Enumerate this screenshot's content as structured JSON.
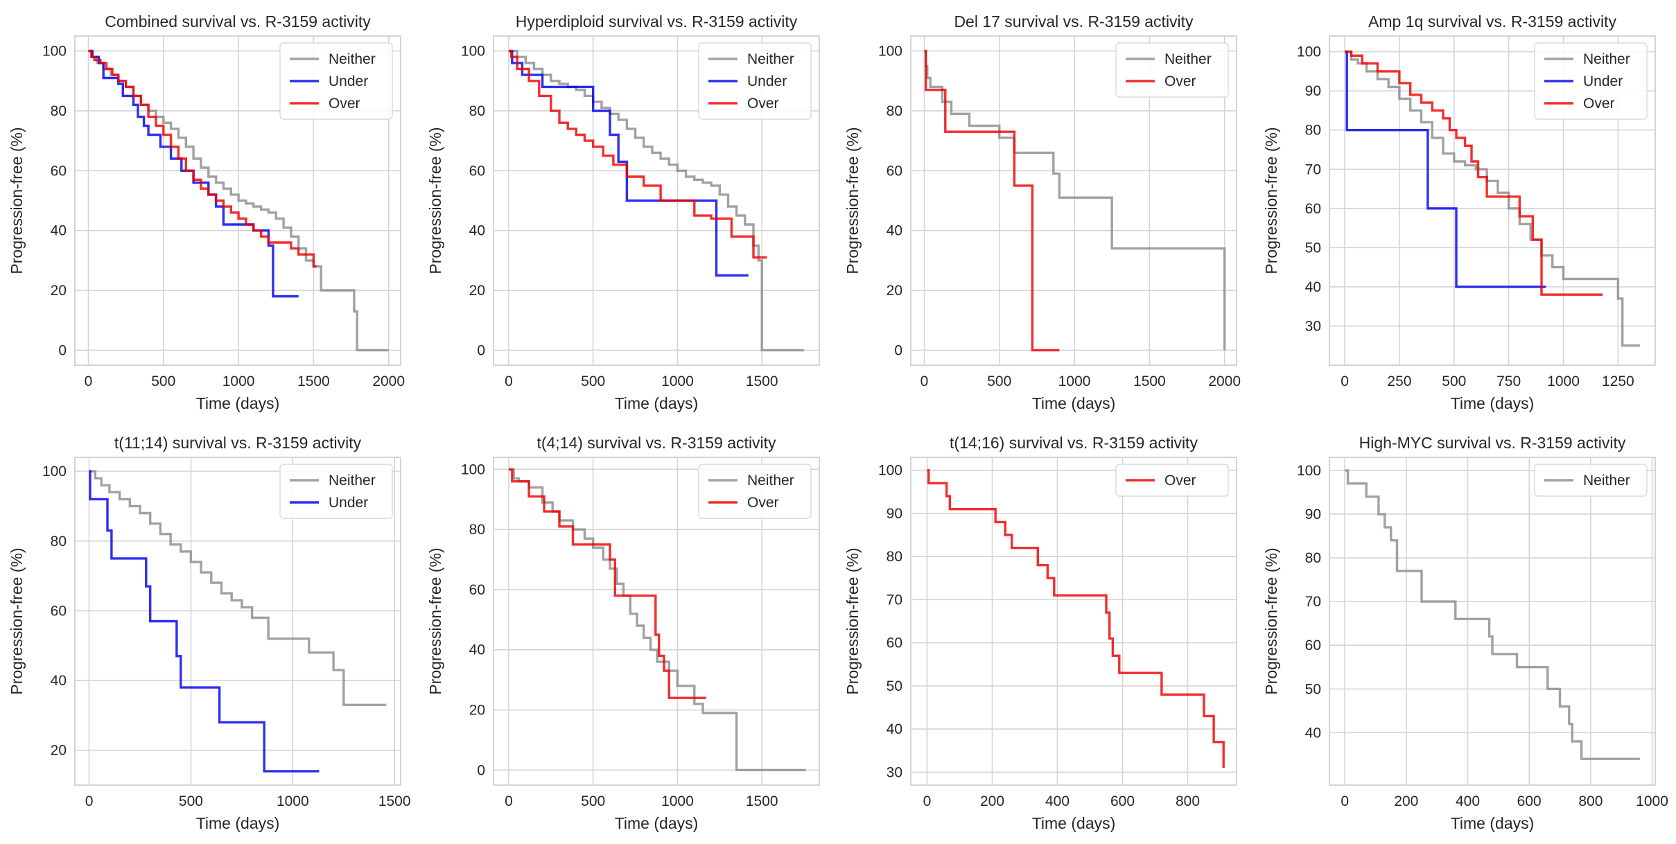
{
  "colors": {
    "Neither": "#8c8c8c",
    "Under": "#0000ee",
    "Over": "#ee0000",
    "grid": "#d4d4d4",
    "frame": "#cfcfcf"
  },
  "chart_data": [
    {
      "type": "line",
      "step": true,
      "title": "Combined survival vs. R-3159 activity",
      "xlabel": "Time (days)",
      "ylabel": "Progression-free (%)",
      "xlim": [
        -90,
        2080
      ],
      "ylim": [
        -5,
        105
      ],
      "xticks": [
        0,
        500,
        1000,
        1500,
        2000
      ],
      "yticks": [
        0,
        20,
        40,
        60,
        80,
        100
      ],
      "legend": "top-right",
      "series": [
        {
          "name": "Neither",
          "x": [
            0,
            30,
            60,
            100,
            150,
            200,
            250,
            300,
            350,
            400,
            450,
            500,
            550,
            600,
            650,
            700,
            750,
            800,
            850,
            900,
            950,
            1000,
            1050,
            1100,
            1150,
            1200,
            1250,
            1300,
            1350,
            1400,
            1450,
            1500,
            1550,
            1600,
            1650,
            1700,
            1750,
            1770,
            1790,
            2000
          ],
          "y": [
            100,
            98,
            96,
            94,
            92,
            90,
            88,
            85,
            82,
            80,
            78,
            76,
            74,
            71,
            68,
            64,
            61,
            58,
            56,
            54,
            52,
            50,
            49,
            48,
            47,
            46,
            44,
            41,
            38,
            34,
            30,
            28,
            20,
            20,
            20,
            20,
            20,
            13,
            0,
            0
          ]
        },
        {
          "name": "Under",
          "x": [
            0,
            25,
            70,
            100,
            200,
            230,
            300,
            330,
            370,
            400,
            480,
            550,
            620,
            700,
            800,
            850,
            900,
            1000,
            1050,
            1100,
            1150,
            1200,
            1230,
            1400
          ],
          "y": [
            100,
            98,
            96,
            91,
            89,
            85,
            82,
            78,
            75,
            72,
            68,
            64,
            60,
            56,
            52,
            48,
            42,
            42,
            42,
            40,
            40,
            35,
            18,
            18
          ]
        },
        {
          "name": "Over",
          "x": [
            0,
            20,
            40,
            80,
            120,
            160,
            200,
            250,
            300,
            350,
            400,
            450,
            500,
            550,
            600,
            650,
            700,
            750,
            800,
            850,
            900,
            950,
            1000,
            1050,
            1100,
            1150,
            1200,
            1250,
            1300,
            1350,
            1400,
            1450,
            1500,
            1520
          ],
          "y": [
            100,
            98,
            97,
            96,
            94,
            92,
            90,
            88,
            85,
            82,
            78,
            75,
            72,
            68,
            64,
            60,
            57,
            54,
            52,
            50,
            48,
            46,
            44,
            42,
            40,
            38,
            36,
            36,
            36,
            34,
            32,
            32,
            28,
            28
          ]
        }
      ]
    },
    {
      "type": "line",
      "step": true,
      "title": "Hyperdiploid survival vs. R-3159 activity",
      "xlabel": "Time (days)",
      "ylabel": "Progression-free (%)",
      "xlim": [
        -90,
        1840
      ],
      "ylim": [
        -5,
        105
      ],
      "xticks": [
        0,
        500,
        1000,
        1500
      ],
      "yticks": [
        0,
        20,
        40,
        60,
        80,
        100
      ],
      "legend": "top-right",
      "series": [
        {
          "name": "Neither",
          "x": [
            0,
            50,
            100,
            150,
            200,
            250,
            300,
            350,
            400,
            450,
            500,
            550,
            600,
            650,
            700,
            750,
            800,
            850,
            900,
            950,
            1000,
            1050,
            1100,
            1150,
            1200,
            1250,
            1300,
            1350,
            1400,
            1450,
            1480,
            1500,
            1750
          ],
          "y": [
            100,
            98,
            96,
            94,
            92,
            90,
            89,
            88,
            87,
            85,
            83,
            81,
            79,
            77,
            74,
            71,
            68,
            66,
            64,
            62,
            60,
            58,
            57,
            56,
            55,
            52,
            48,
            45,
            42,
            35,
            30,
            0,
            0
          ]
        },
        {
          "name": "Under",
          "x": [
            0,
            20,
            80,
            200,
            300,
            350,
            500,
            600,
            650,
            700,
            900,
            1000,
            1200,
            1230,
            1420
          ],
          "y": [
            100,
            96,
            92,
            88,
            88,
            88,
            80,
            72,
            63,
            50,
            50,
            50,
            50,
            25,
            25
          ]
        },
        {
          "name": "Over",
          "x": [
            0,
            15,
            50,
            120,
            180,
            250,
            300,
            350,
            400,
            450,
            500,
            560,
            620,
            700,
            800,
            900,
            1000,
            1100,
            1200,
            1320,
            1400,
            1450,
            1530
          ],
          "y": [
            100,
            98,
            94,
            90,
            85,
            80,
            76,
            74,
            72,
            70,
            68,
            65,
            62,
            58,
            55,
            50,
            50,
            45,
            44,
            38,
            38,
            31,
            31
          ]
        }
      ]
    },
    {
      "type": "line",
      "step": true,
      "title": "Del 17 survival vs. R-3159 activity",
      "xlabel": "Time (days)",
      "ylabel": "Progression-free (%)",
      "xlim": [
        -90,
        2080
      ],
      "ylim": [
        -5,
        105
      ],
      "xticks": [
        0,
        500,
        1000,
        1500,
        2000
      ],
      "yticks": [
        0,
        20,
        40,
        60,
        80,
        100
      ],
      "legend": "top-right",
      "series": [
        {
          "name": "Neither",
          "x": [
            0,
            10,
            20,
            40,
            120,
            180,
            300,
            500,
            600,
            860,
            900,
            1250,
            2000
          ],
          "y": [
            100,
            95,
            91,
            88,
            83,
            79,
            75,
            71,
            66,
            59,
            51,
            34,
            0
          ]
        },
        {
          "name": "Over",
          "x": [
            0,
            10,
            140,
            600,
            720,
            900
          ],
          "y": [
            100,
            87,
            73,
            55,
            0,
            0
          ]
        }
      ]
    },
    {
      "type": "line",
      "step": true,
      "title": "Amp 1q survival vs. R-3159 activity",
      "xlabel": "Time (days)",
      "ylabel": "Progression-free (%)",
      "xlim": [
        -70,
        1420
      ],
      "ylim": [
        20,
        104
      ],
      "xticks": [
        0,
        250,
        500,
        750,
        1000,
        1250
      ],
      "yticks": [
        30,
        40,
        50,
        60,
        70,
        80,
        90,
        100
      ],
      "legend": "top-right",
      "series": [
        {
          "name": "Neither",
          "x": [
            0,
            30,
            60,
            100,
            150,
            200,
            250,
            300,
            350,
            400,
            450,
            500,
            550,
            600,
            650,
            700,
            750,
            800,
            850,
            900,
            950,
            1000,
            1100,
            1200,
            1250,
            1270,
            1350
          ],
          "y": [
            100,
            98,
            97,
            95,
            93,
            91,
            88,
            85,
            82,
            78,
            74,
            72,
            71,
            70,
            67,
            64,
            60,
            56,
            52,
            48,
            45,
            42,
            42,
            42,
            37,
            25,
            25
          ]
        },
        {
          "name": "Under",
          "x": [
            0,
            10,
            380,
            510,
            900,
            920
          ],
          "y": [
            100,
            80,
            60,
            40,
            40,
            40
          ]
        },
        {
          "name": "Over",
          "x": [
            0,
            30,
            80,
            150,
            250,
            300,
            350,
            400,
            450,
            480,
            510,
            550,
            580,
            610,
            650,
            700,
            800,
            860,
            900,
            1180
          ],
          "y": [
            100,
            99,
            97,
            95,
            92,
            89,
            87,
            85,
            83,
            80,
            78,
            76,
            72,
            68,
            63,
            63,
            58,
            52,
            38,
            38
          ]
        }
      ]
    },
    {
      "type": "line",
      "step": true,
      "title": "t(11;14) survival vs. R-3159 activity",
      "xlabel": "Time (days)",
      "ylabel": "Progression-free (%)",
      "xlim": [
        -70,
        1530
      ],
      "ylim": [
        10,
        104
      ],
      "xticks": [
        0,
        500,
        1000,
        1500
      ],
      "yticks": [
        20,
        40,
        60,
        80,
        100
      ],
      "legend": "top-right",
      "series": [
        {
          "name": "Neither",
          "x": [
            0,
            30,
            60,
            100,
            150,
            200,
            250,
            300,
            350,
            400,
            450,
            500,
            550,
            600,
            650,
            700,
            750,
            800,
            880,
            1000,
            1080,
            1150,
            1200,
            1250,
            1460
          ],
          "y": [
            100,
            98,
            96,
            94,
            92,
            90,
            88,
            85,
            82,
            79,
            77,
            74,
            71,
            68,
            65,
            63,
            61,
            58,
            52,
            52,
            48,
            48,
            43,
            33,
            33
          ]
        },
        {
          "name": "Under",
          "x": [
            0,
            5,
            90,
            110,
            280,
            300,
            430,
            450,
            640,
            860,
            1130
          ],
          "y": [
            100,
            92,
            83,
            75,
            67,
            57,
            47,
            38,
            28,
            14,
            14
          ]
        }
      ]
    },
    {
      "type": "line",
      "step": true,
      "title": "t(4;14) survival vs. R-3159 activity",
      "xlabel": "Time (days)",
      "ylabel": "Progression-free (%)",
      "xlim": [
        -90,
        1840
      ],
      "ylim": [
        -5,
        104
      ],
      "xticks": [
        0,
        500,
        1000,
        1500
      ],
      "yticks": [
        0,
        20,
        40,
        60,
        80,
        100
      ],
      "legend": "top-right",
      "series": [
        {
          "name": "Neither",
          "x": [
            0,
            30,
            60,
            120,
            200,
            260,
            300,
            380,
            450,
            500,
            560,
            600,
            640,
            680,
            720,
            760,
            800,
            840,
            880,
            950,
            1000,
            1100,
            1150,
            1350,
            1760
          ],
          "y": [
            100,
            97,
            96,
            94,
            89,
            86,
            83,
            80,
            77,
            74,
            70,
            67,
            62,
            58,
            52,
            48,
            44,
            40,
            36,
            33,
            28,
            22,
            19,
            0,
            0
          ]
        },
        {
          "name": "Over",
          "x": [
            0,
            20,
            120,
            210,
            300,
            380,
            600,
            630,
            870,
            890,
            920,
            950,
            1170
          ],
          "y": [
            100,
            96,
            91,
            86,
            81,
            75,
            70,
            58,
            45,
            38,
            33,
            24,
            24
          ]
        }
      ]
    },
    {
      "type": "line",
      "step": true,
      "title": "t(14;16) survival vs. R-3159 activity",
      "xlabel": "Time (days)",
      "ylabel": "Progression-free (%)",
      "xlim": [
        -50,
        950
      ],
      "ylim": [
        27,
        103
      ],
      "xticks": [
        0,
        200,
        400,
        600,
        800
      ],
      "yticks": [
        30,
        40,
        50,
        60,
        70,
        80,
        90,
        100
      ],
      "legend": "top-right",
      "series": [
        {
          "name": "Over",
          "x": [
            0,
            5,
            60,
            70,
            210,
            240,
            260,
            340,
            370,
            390,
            550,
            560,
            570,
            590,
            720,
            850,
            880,
            910
          ],
          "y": [
            100,
            97,
            94,
            91,
            88,
            85,
            82,
            78,
            75,
            71,
            67,
            61,
            57,
            53,
            48,
            43,
            37,
            31
          ]
        }
      ]
    },
    {
      "type": "line",
      "step": true,
      "title": "High-MYC survival vs. R-3159 activity",
      "xlabel": "Time (days)",
      "ylabel": "Progression-free (%)",
      "xlim": [
        -50,
        1010
      ],
      "ylim": [
        28,
        103
      ],
      "xticks": [
        0,
        200,
        400,
        600,
        800,
        1000
      ],
      "yticks": [
        40,
        50,
        60,
        70,
        80,
        90,
        100
      ],
      "legend": "top-right",
      "series": [
        {
          "name": "Neither",
          "x": [
            0,
            10,
            70,
            110,
            130,
            150,
            170,
            250,
            360,
            470,
            480,
            560,
            660,
            700,
            730,
            740,
            770,
            960
          ],
          "y": [
            100,
            97,
            94,
            90,
            87,
            84,
            77,
            70,
            66,
            62,
            58,
            55,
            50,
            46,
            42,
            38,
            34,
            34
          ]
        }
      ]
    }
  ]
}
